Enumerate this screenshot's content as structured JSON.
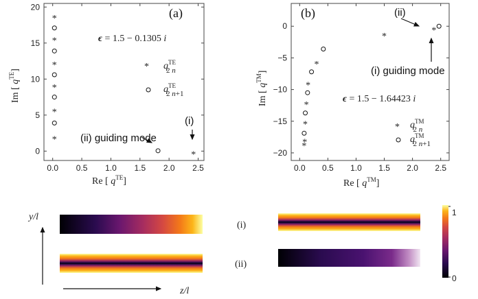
{
  "chart_data": [
    {
      "type": "scatter",
      "panel": "(a)",
      "epsilon": "ϵ = 1.5 − 0.1305 i",
      "xlabel": "Re [ q^TE]",
      "ylabel": "Im [ q^TE]",
      "xlim": [
        -0.15,
        2.6
      ],
      "ylim": [
        -1.3,
        20.5
      ],
      "xticks": [
        "0.0",
        "0.5",
        "1.0",
        "1.5",
        "2.0",
        "2.5"
      ],
      "yticks": [
        "0",
        "5",
        "10",
        "15",
        "20"
      ],
      "series": [
        {
          "name": "q^TE_2n",
          "marker": "star",
          "x": [
            0.03,
            0.03,
            0.03,
            0.03,
            0.03,
            0.03,
            2.42
          ],
          "y": [
            1.9,
            5.7,
            9.1,
            12.2,
            15.6,
            18.7,
            -0.2
          ]
        },
        {
          "name": "q^TE_2n+1",
          "marker": "circle",
          "x": [
            0.03,
            0.03,
            0.03,
            0.03,
            0.03,
            1.81
          ],
          "y": [
            3.9,
            7.5,
            10.6,
            13.9,
            17.1,
            0.05
          ]
        }
      ],
      "annotations": [
        {
          "text": "(ii) guiding mode",
          "at": [
            1.81,
            0.05
          ]
        },
        {
          "text": "(i)",
          "at": [
            2.42,
            -0.2
          ]
        }
      ],
      "legend": [
        "q^TE_2n",
        "q^TE_2n+1"
      ]
    },
    {
      "type": "scatter",
      "panel": "(b)",
      "epsilon": "ϵ = 1.5 − 1.64423 i",
      "xlabel": "Re [ q^TM]",
      "ylabel": "Im [ q^TM]",
      "xlim": [
        -0.15,
        2.65
      ],
      "ylim": [
        -21.2,
        3.6
      ],
      "xticks": [
        "0.0",
        "0.5",
        "1.0",
        "1.5",
        "2.0",
        "2.5"
      ],
      "yticks": [
        "0",
        "−5",
        "−10",
        "−15",
        "−20"
      ],
      "series": [
        {
          "name": "q^TM_2n",
          "marker": "star",
          "x": [
            1.5,
            0.3,
            0.15,
            0.12,
            0.1,
            0.09,
            0.08,
            2.38
          ],
          "y": [
            -1.3,
            -5.7,
            -9.0,
            -12.1,
            -15.2,
            -18.0,
            -18.6,
            -0.35
          ]
        },
        {
          "name": "q^TM_2n+1",
          "marker": "circle",
          "x": [
            0.42,
            0.21,
            0.14,
            0.1,
            0.08,
            2.47
          ],
          "y": [
            -3.6,
            -7.2,
            -10.5,
            -13.7,
            -16.9,
            0.0
          ]
        }
      ],
      "annotations": [
        {
          "text": "(ii)",
          "at": [
            2.38,
            -0.35
          ]
        },
        {
          "text": "(i) guiding mode",
          "at": [
            2.47,
            0.0
          ]
        }
      ],
      "legend": [
        "q^TM_2n",
        "q^TM_2n+1"
      ]
    }
  ],
  "fields": {
    "y_axis_label": "y/l",
    "z_axis_label": "z/l",
    "row_i_label": "(i)",
    "row_ii_label": "(ii)",
    "colorbar_max": "1",
    "colorbar_min": "0"
  },
  "colors": {
    "cmap": [
      "#000004",
      "#2a0b4f",
      "#6a176e",
      "#a52c60",
      "#d44842",
      "#f37819",
      "#fcb519",
      "#fcffa4"
    ]
  }
}
